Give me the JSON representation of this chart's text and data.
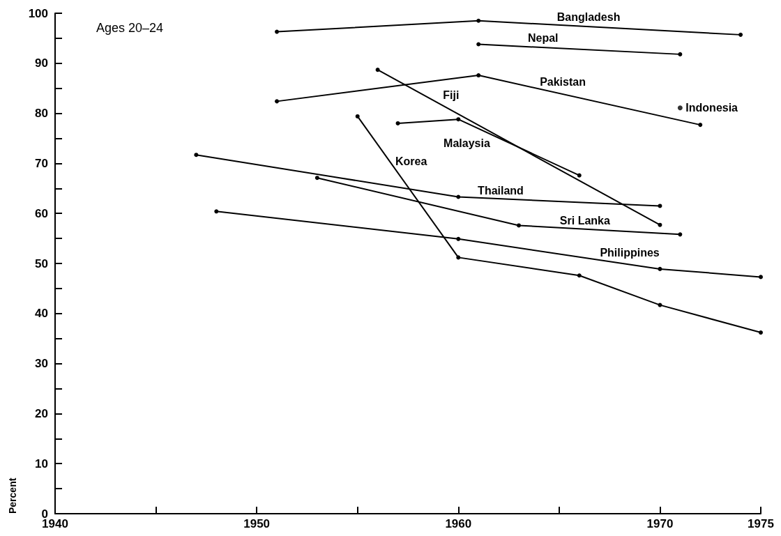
{
  "chart_data": {
    "type": "line",
    "ylabel": "Percent",
    "annotations": [
      "Ages 20–24"
    ],
    "xlim": [
      1940,
      1975
    ],
    "xticks": [
      1940,
      {
        "value": 1945,
        "label": null
      },
      1950,
      {
        "value": 1955,
        "label": null
      },
      1960,
      {
        "value": 1965,
        "label": null
      },
      1970,
      1975
    ],
    "ylim": [
      0,
      100
    ],
    "yticks": [
      0,
      {
        "value": 5,
        "label": null
      },
      10,
      {
        "value": 15,
        "label": null
      },
      20,
      {
        "value": 25,
        "label": null
      },
      30,
      {
        "value": 35,
        "label": null
      },
      40,
      {
        "value": 45,
        "label": null
      },
      50,
      {
        "value": 55,
        "label": null
      },
      60,
      {
        "value": 65,
        "label": null
      },
      70,
      {
        "value": 75,
        "label": null
      },
      80,
      {
        "value": 85,
        "label": null
      },
      90,
      {
        "value": 95,
        "label": null
      },
      100
    ],
    "grid": false,
    "legend": false,
    "marker": "circle",
    "line_style": "solid",
    "series": [
      {
        "name": "Bangladesh",
        "color": "#000000",
        "x": [
          1951,
          1961,
          1974
        ],
        "values": [
          96.3,
          98.5,
          95.7
        ]
      },
      {
        "name": "Nepal",
        "color": "#000000",
        "x": [
          1961,
          1971
        ],
        "values": [
          93.8,
          91.8
        ]
      },
      {
        "name": "Pakistan",
        "color": "#000000",
        "x": [
          1951,
          1961,
          1972
        ],
        "values": [
          82.4,
          87.6,
          77.7
        ]
      },
      {
        "name": "Indonesia",
        "type": "scatter",
        "color": "#000000",
        "x": [
          1971
        ],
        "values": [
          81.1
        ]
      },
      {
        "name": "Fiji",
        "color": "#000000",
        "x": [
          1956,
          1970
        ],
        "values": [
          88.7,
          57.7
        ]
      },
      {
        "name": "Malaysia",
        "color": "#000000",
        "x": [
          1957,
          1960,
          1966
        ],
        "values": [
          78.0,
          78.8,
          67.6
        ]
      },
      {
        "name": "Korea",
        "color": "#000000",
        "x": [
          1955,
          1960,
          1966,
          1970,
          1975
        ],
        "values": [
          79.4,
          51.2,
          47.6,
          41.7,
          36.2
        ]
      },
      {
        "name": "Thailand",
        "color": "#000000",
        "x": [
          1947,
          1960,
          1970
        ],
        "values": [
          71.7,
          63.3,
          61.5
        ]
      },
      {
        "name": "Sri Lanka",
        "color": "#000000",
        "x": [
          1953,
          1963,
          1971
        ],
        "values": [
          67.1,
          57.6,
          55.8
        ]
      },
      {
        "name": "Philippines",
        "color": "#000000",
        "x": [
          1948,
          1960,
          1970,
          1975
        ],
        "values": [
          60.4,
          54.9,
          48.9,
          47.3
        ]
      }
    ]
  }
}
